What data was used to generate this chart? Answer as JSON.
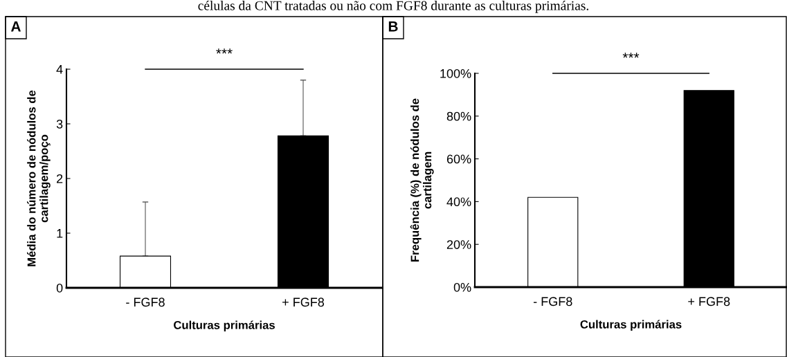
{
  "chart_data": [
    {
      "type": "bar",
      "title": "A",
      "annotations": [
        "células da CNT tratadas ou não com FGF8 durante as culturas primárias.",
        "***"
      ],
      "categories": [
        "- FGF8",
        "+ FGF8"
      ],
      "xlabel": "Culturas primárias",
      "ylabel": "Média do número de nódulos de\ncartilagem/poço",
      "values": [
        0.58,
        2.78
      ],
      "colors": [
        "#ffffff",
        "#000000"
      ],
      "errors": [
        [
          0.58,
          1.57
        ],
        [
          2.78,
          3.8
        ]
      ],
      "ylim": [
        0,
        4
      ],
      "yticks": [
        0,
        1,
        2,
        3,
        4
      ],
      "grid": false,
      "legend": false
    },
    {
      "type": "bar",
      "title": "B",
      "annotations": [
        "***"
      ],
      "categories": [
        "- FGF8",
        "+ FGF8"
      ],
      "xlabel": "Culturas primárias",
      "ylabel": "Frequência (%) de nódulos de\ncartilagem",
      "values": [
        42,
        92
      ],
      "colors": [
        "#ffffff",
        "#000000"
      ],
      "ylim": [
        0,
        100
      ],
      "yticks": [
        {
          "value": 0,
          "label": "0%"
        },
        {
          "value": 20,
          "label": "20%"
        },
        {
          "value": 40,
          "label": "40%"
        },
        {
          "value": 60,
          "label": "60%"
        },
        {
          "value": 80,
          "label": "80%"
        },
        {
          "value": 100,
          "label": "100%"
        }
      ],
      "grid": false,
      "legend": false
    }
  ]
}
